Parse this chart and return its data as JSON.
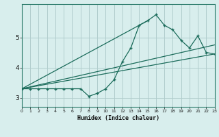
{
  "xlabel": "Humidex (Indice chaleur)",
  "bg_color": "#d8eeed",
  "grid_color": "#b0cccc",
  "line_color": "#1a6b5a",
  "x_min": 0,
  "x_max": 23,
  "y_min": 2.7,
  "y_max": 6.1,
  "yticks": [
    3,
    4,
    5
  ],
  "xticks": [
    0,
    1,
    2,
    3,
    4,
    5,
    6,
    7,
    8,
    9,
    10,
    11,
    12,
    13,
    14,
    15,
    16,
    17,
    18,
    19,
    20,
    21,
    22,
    23
  ],
  "curve1_x": [
    0,
    1,
    2,
    3,
    4,
    5,
    6,
    7,
    8,
    9,
    10,
    11,
    12,
    13,
    14,
    15,
    16,
    17,
    18,
    19,
    20,
    21,
    22,
    23
  ],
  "curve1_y": [
    3.3,
    3.3,
    3.3,
    3.3,
    3.3,
    3.3,
    3.3,
    3.3,
    3.05,
    3.15,
    3.3,
    3.6,
    4.2,
    4.65,
    5.4,
    5.55,
    5.75,
    5.4,
    5.25,
    4.9,
    4.65,
    5.05,
    4.5,
    4.45
  ],
  "line2_x": [
    0,
    23
  ],
  "line2_y": [
    3.3,
    4.45
  ],
  "line3_x": [
    0,
    15
  ],
  "line3_y": [
    3.3,
    5.55
  ],
  "line4_x": [
    0,
    23
  ],
  "line4_y": [
    3.3,
    4.75
  ],
  "xlabel_fontsize": 6,
  "ytick_fontsize": 6.5,
  "xtick_fontsize": 4.5
}
